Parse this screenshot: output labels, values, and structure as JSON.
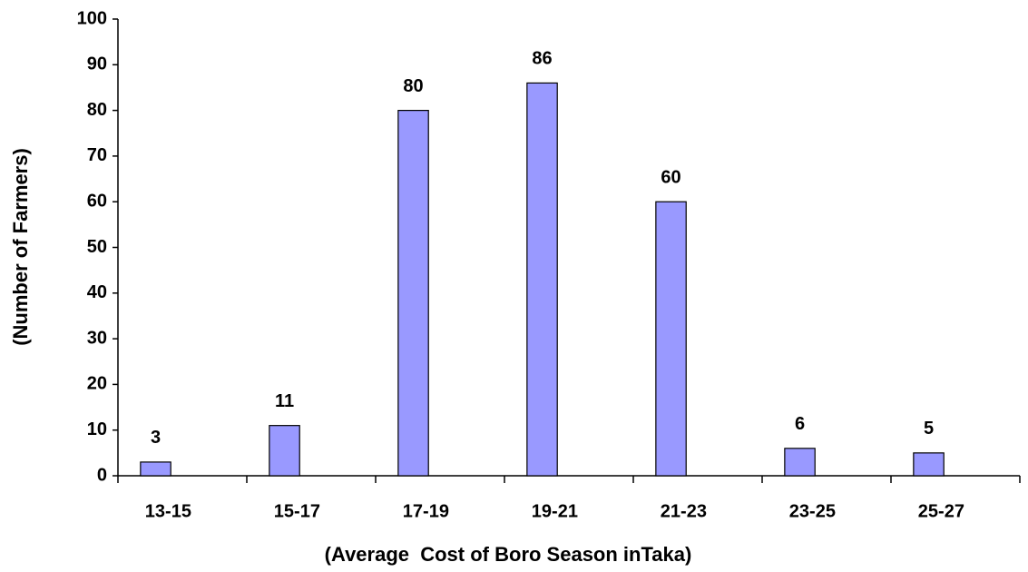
{
  "chart_data": {
    "type": "bar",
    "x_label": "(Average  Cost of Boro Season inTaka)",
    "y_label": "(Number of Farmers)",
    "categories": [
      "13-15",
      "15-17",
      "17-19",
      "19-21",
      "21-23",
      "23-25",
      "25-27"
    ],
    "values": [
      3,
      11,
      80,
      86,
      60,
      6,
      5
    ],
    "color": "#9999ff",
    "ylim": [
      0,
      100
    ],
    "yticks": [
      0,
      10,
      20,
      30,
      40,
      50,
      60,
      70,
      80,
      90,
      100
    ]
  }
}
